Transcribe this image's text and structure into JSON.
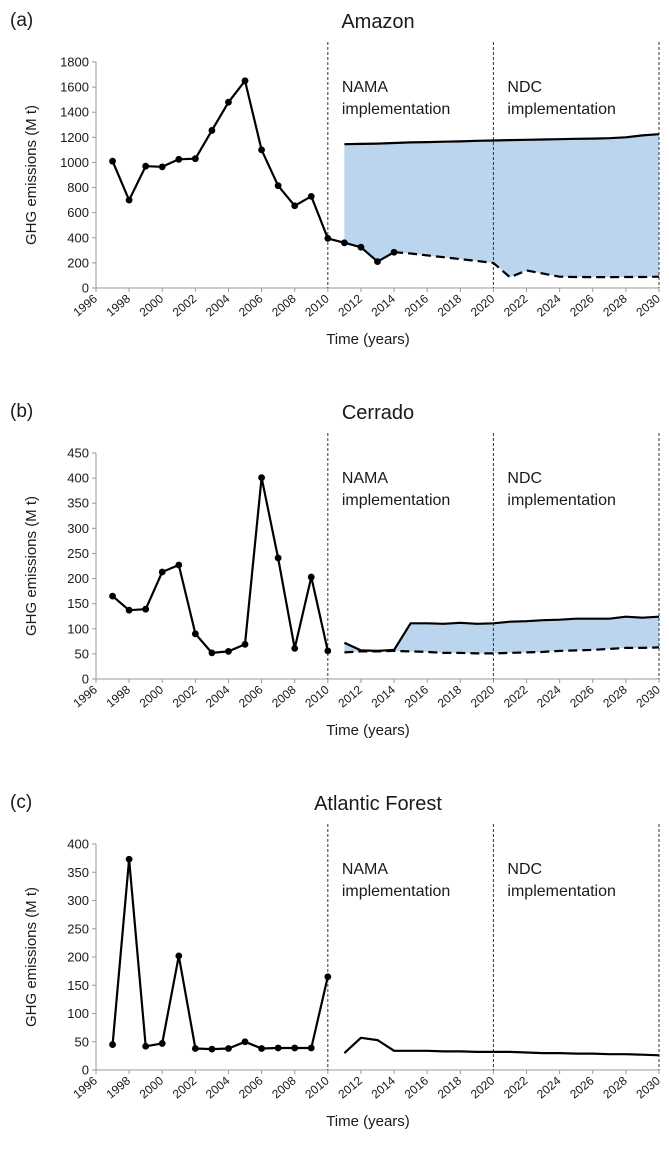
{
  "chart_data": [
    {
      "type": "line",
      "panel_label": "(a)",
      "title": "Amazon",
      "xlabel": "Time (years)",
      "ylabel": "GHG emissions  (M t)",
      "xlim": [
        1996,
        2030
      ],
      "ylim": [
        0,
        1800
      ],
      "yticks": [
        0,
        200,
        400,
        600,
        800,
        1000,
        1200,
        1400,
        1600,
        1800
      ],
      "xticks": [
        1996,
        1998,
        2000,
        2002,
        2004,
        2006,
        2008,
        2010,
        2012,
        2014,
        2016,
        2018,
        2020,
        2022,
        2024,
        2026,
        2028,
        2030
      ],
      "annotations": [
        {
          "x": 2010,
          "lines": [
            "NAMA",
            "implementation"
          ]
        },
        {
          "x": 2020,
          "lines": [
            "NDC",
            "implementation"
          ]
        }
      ],
      "vlines": [
        2010,
        2020,
        2030
      ],
      "series": [
        {
          "style": "markers",
          "x": [
            1997,
            1998,
            1999,
            2000,
            2001,
            2002,
            2003,
            2004,
            2005,
            2006,
            2007,
            2008,
            2009,
            2010,
            2011,
            2012,
            2013,
            2014
          ],
          "y": [
            1010,
            700,
            970,
            965,
            1025,
            1030,
            1255,
            1480,
            1650,
            1100,
            815,
            655,
            730,
            395,
            360,
            325,
            210,
            285
          ]
        },
        {
          "style": "solid",
          "x": [
            2011,
            2012,
            2013,
            2014,
            2015,
            2016,
            2017,
            2018,
            2019,
            2020,
            2021,
            2022,
            2023,
            2024,
            2025,
            2026,
            2027,
            2028,
            2029,
            2030
          ],
          "y": [
            1145,
            1148,
            1150,
            1155,
            1160,
            1162,
            1165,
            1168,
            1172,
            1175,
            1178,
            1180,
            1183,
            1185,
            1188,
            1190,
            1193,
            1200,
            1215,
            1225
          ]
        },
        {
          "style": "dashed",
          "x": [
            2014,
            2015,
            2016,
            2017,
            2018,
            2019,
            2020,
            2021,
            2022,
            2023,
            2024,
            2025,
            2026,
            2027,
            2028,
            2029,
            2030
          ],
          "y": [
            285,
            275,
            260,
            245,
            230,
            215,
            200,
            85,
            140,
            115,
            90,
            88,
            87,
            87,
            88,
            88,
            90
          ]
        }
      ],
      "fill": {
        "x": [
          2011,
          2030
        ],
        "color": "#bcd5ee"
      }
    },
    {
      "type": "line",
      "panel_label": "(b)",
      "title": "Cerrado",
      "xlabel": "Time (years)",
      "ylabel": "GHG emissions  (M t)",
      "xlim": [
        1996,
        2030
      ],
      "ylim": [
        0,
        450
      ],
      "yticks": [
        0,
        50,
        100,
        150,
        200,
        250,
        300,
        350,
        400,
        450
      ],
      "xticks": [
        1996,
        1998,
        2000,
        2002,
        2004,
        2006,
        2008,
        2010,
        2012,
        2014,
        2016,
        2018,
        2020,
        2022,
        2024,
        2026,
        2028,
        2030
      ],
      "annotations": [
        {
          "x": 2010,
          "lines": [
            "NAMA",
            "implementation"
          ]
        },
        {
          "x": 2020,
          "lines": [
            "NDC",
            "implementation"
          ]
        }
      ],
      "vlines": [
        2010,
        2020,
        2030
      ],
      "series": [
        {
          "style": "markers",
          "x": [
            1997,
            1998,
            1999,
            2000,
            2001,
            2002,
            2003,
            2004,
            2005,
            2006,
            2007,
            2008,
            2009,
            2010
          ],
          "y": [
            165,
            137,
            139,
            213,
            227,
            90,
            52,
            55,
            69,
            401,
            241,
            61,
            203,
            56
          ]
        },
        {
          "style": "solid",
          "x": [
            2011,
            2012,
            2013,
            2014,
            2015,
            2016,
            2017,
            2018,
            2019,
            2020,
            2021,
            2022,
            2023,
            2024,
            2025,
            2026,
            2027,
            2028,
            2029,
            2030
          ],
          "y": [
            72,
            57,
            56,
            58,
            111,
            111,
            110,
            112,
            110,
            111,
            114,
            115,
            117,
            118,
            120,
            120,
            120,
            124,
            122,
            124
          ]
        },
        {
          "style": "dashed",
          "x": [
            2011,
            2012,
            2013,
            2014,
            2015,
            2016,
            2017,
            2018,
            2019,
            2020,
            2021,
            2022,
            2023,
            2024,
            2025,
            2026,
            2027,
            2028,
            2029,
            2030
          ],
          "y": [
            53,
            55,
            55,
            56,
            55,
            54,
            52,
            52,
            51,
            51,
            52,
            53,
            54,
            56,
            57,
            58,
            60,
            62,
            62,
            63
          ]
        }
      ],
      "fill": {
        "x": [
          2011,
          2030
        ],
        "color": "#bcd5ee"
      }
    },
    {
      "type": "line",
      "panel_label": "(c)",
      "title": "Atlantic Forest",
      "xlabel": "Time (years)",
      "ylabel": "GHG emissions  (M t)",
      "xlim": [
        1996,
        2030
      ],
      "ylim": [
        0,
        400
      ],
      "yticks": [
        0,
        50,
        100,
        150,
        200,
        250,
        300,
        350,
        400
      ],
      "xticks": [
        1996,
        1998,
        2000,
        2002,
        2004,
        2006,
        2008,
        2010,
        2012,
        2014,
        2016,
        2018,
        2020,
        2022,
        2024,
        2026,
        2028,
        2030
      ],
      "annotations": [
        {
          "x": 2010,
          "lines": [
            "NAMA",
            "implementation"
          ]
        },
        {
          "x": 2020,
          "lines": [
            "NDC",
            "implementation"
          ]
        }
      ],
      "vlines": [
        2010,
        2020,
        2030
      ],
      "series": [
        {
          "style": "markers",
          "x": [
            1997,
            1998,
            1999,
            2000,
            2001,
            2002,
            2003,
            2004,
            2005,
            2006,
            2007,
            2008,
            2009,
            2010
          ],
          "y": [
            45,
            373,
            42,
            47,
            202,
            38,
            37,
            38,
            50,
            38,
            39,
            39,
            39,
            165
          ]
        },
        {
          "style": "solid",
          "x": [
            2011,
            2012,
            2013,
            2014,
            2015,
            2016,
            2017,
            2018,
            2019,
            2020,
            2021,
            2022,
            2023,
            2024,
            2025,
            2026,
            2027,
            2028,
            2029,
            2030
          ],
          "y": [
            30,
            57,
            53,
            34,
            34,
            34,
            33,
            33,
            32,
            32,
            32,
            31,
            30,
            30,
            29,
            29,
            28,
            28,
            27,
            26
          ]
        }
      ],
      "fill": null
    }
  ]
}
